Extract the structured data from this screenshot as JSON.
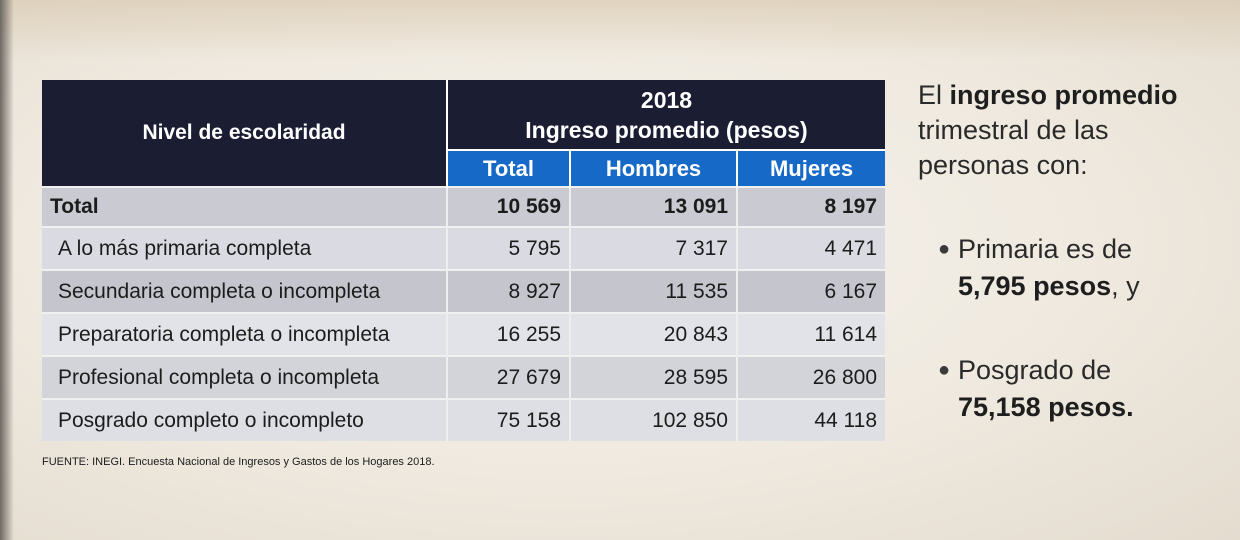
{
  "table": {
    "header_level": "Nivel de escolaridad",
    "header_year": "2018",
    "header_group": "Ingreso promedio (pesos)",
    "columns": [
      "Total",
      "Hombres",
      "Mujeres"
    ],
    "rows": [
      {
        "label": "Total",
        "total": "10 569",
        "hombres": "13 091",
        "mujeres": "8 197"
      },
      {
        "label": "A lo más primaria completa",
        "total": "5 795",
        "hombres": "7 317",
        "mujeres": "4 471"
      },
      {
        "label": "Secundaria completa o incompleta",
        "total": "8 927",
        "hombres": "11 535",
        "mujeres": "6 167"
      },
      {
        "label": "Preparatoria completa o incompleta",
        "total": "16 255",
        "hombres": "20 843",
        "mujeres": "11 614"
      },
      {
        "label": "Profesional completa o incompleta",
        "total": "27 679",
        "hombres": "28 595",
        "mujeres": "26 800"
      },
      {
        "label": "Posgrado completo o incompleto",
        "total": "75 158",
        "hombres": "102 850",
        "mujeres": "44 118"
      }
    ]
  },
  "source": "FUENTE: INEGI. Encuesta Nacional de Ingresos y Gastos de los Hogares 2018.",
  "side": {
    "intro_a": "El ",
    "intro_bold": "ingreso promedio",
    "intro_b": "trimestral de las",
    "intro_c": "personas con:",
    "bullet1_a": "Primaria es de",
    "bullet1_bold": "5,795 pesos",
    "bullet1_tail": ", y",
    "bullet2_a": "Posgrado de",
    "bullet2_bold": "75,158 pesos."
  },
  "colors": {
    "header_dark": "#1b1e33",
    "header_blue": "#1769c7"
  }
}
